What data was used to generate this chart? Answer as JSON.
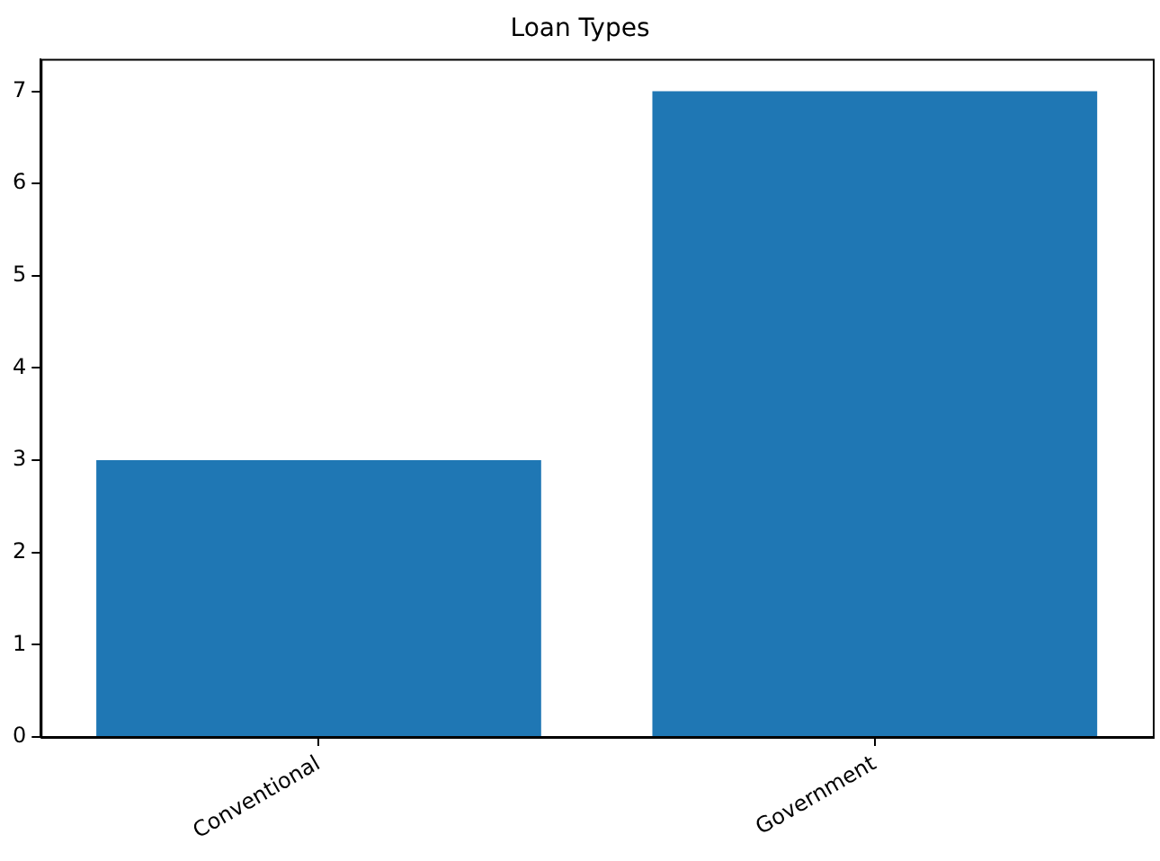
{
  "chart_data": {
    "type": "bar",
    "title": "Loan Types",
    "categories": [
      "Conventional",
      "Government"
    ],
    "values": [
      3,
      7
    ],
    "color": "#1f77b4",
    "ylim": [
      0,
      7.35
    ],
    "yticks": [
      0,
      1,
      2,
      3,
      4,
      5,
      6,
      7
    ],
    "grid": false,
    "legend": false
  }
}
